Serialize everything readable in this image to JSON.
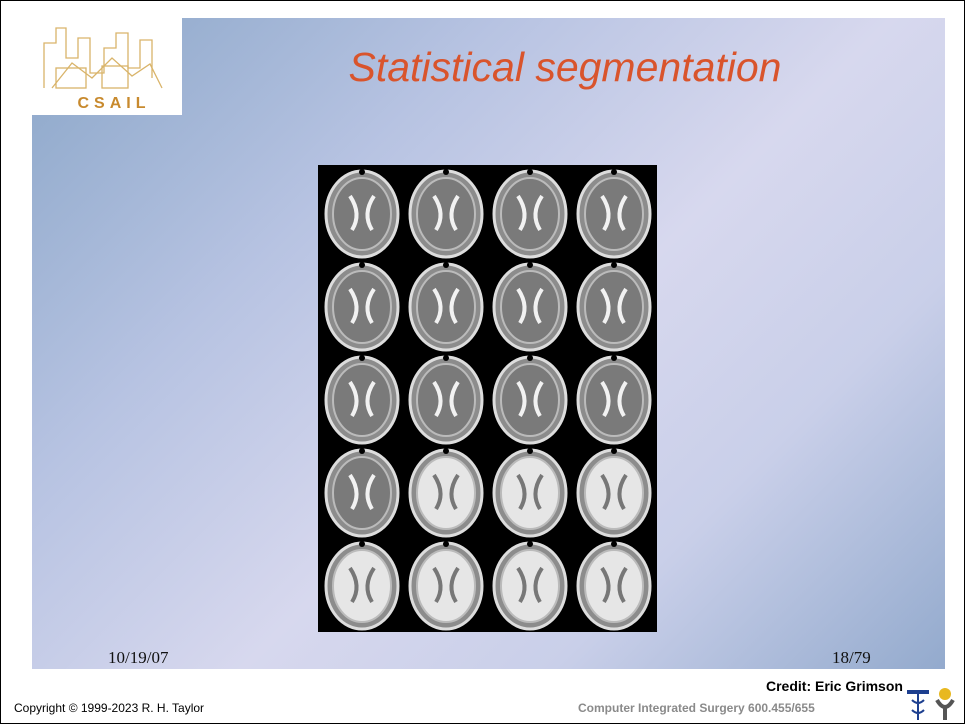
{
  "logo": {
    "text": "CSAIL"
  },
  "slide": {
    "title": "Statistical segmentation",
    "date": "10/19/07",
    "page": "18/79"
  },
  "credit": "Credit: Eric Grimson",
  "footer": {
    "copyright": "Copyright © 1999-2023 R. H. Taylor",
    "course": "Computer Integrated Surgery 600.455/655"
  }
}
